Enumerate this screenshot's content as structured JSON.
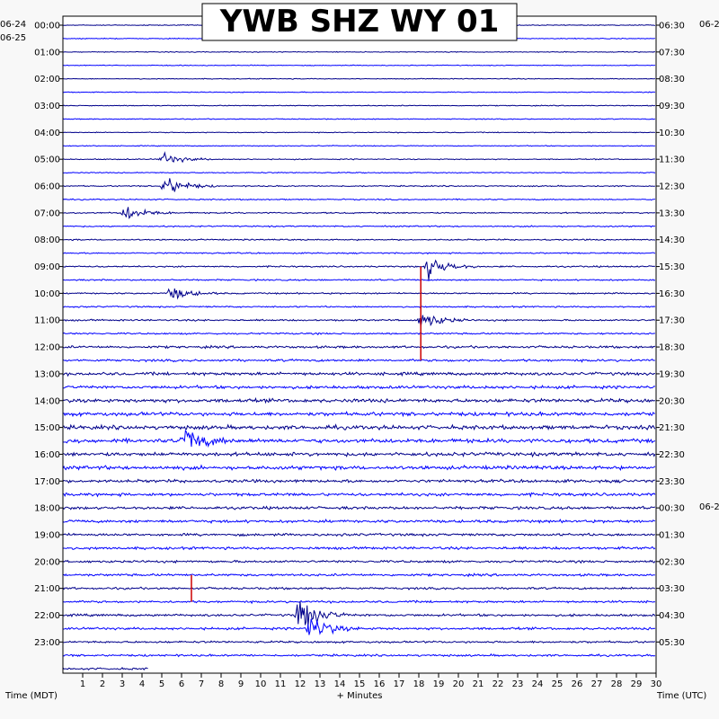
{
  "chart_data": {
    "type": "line",
    "title": "YWB SHZ WY 01",
    "xlabel": "+ Minutes",
    "left_axis_label": "Time (MDT)",
    "right_axis_label": "Time (UTC)",
    "xlim": [
      0,
      30
    ],
    "x_ticks": [
      "1",
      "2",
      "3",
      "4",
      "5",
      "6",
      "7",
      "8",
      "9",
      "10",
      "11",
      "12",
      "13",
      "14",
      "15",
      "16",
      "17",
      "18",
      "19",
      "20",
      "21",
      "22",
      "23",
      "24",
      "25",
      "26",
      "27",
      "28",
      "29",
      "30"
    ],
    "left_date_top": "06-24",
    "left_date_start": "06-25",
    "right_date_top": "06-2",
    "right_date_mid": "06-2",
    "left_hour_labels": [
      "00:00",
      "01:00",
      "02:00",
      "03:00",
      "04:00",
      "05:00",
      "06:00",
      "07:00",
      "08:00",
      "09:00",
      "10:00",
      "11:00",
      "12:00",
      "13:00",
      "14:00",
      "15:00",
      "16:00",
      "17:00",
      "18:00",
      "19:00",
      "20:00",
      "21:00",
      "22:00",
      "23:00"
    ],
    "right_hour_labels": [
      "06:30",
      "07:30",
      "08:30",
      "09:30",
      "10:30",
      "11:30",
      "12:30",
      "13:30",
      "14:30",
      "15:30",
      "16:30",
      "17:30",
      "18:30",
      "19:30",
      "20:30",
      "21:30",
      "22:30",
      "23:30",
      "00:30",
      "01:30",
      "02:30",
      "03:30",
      "04:30",
      "05:30"
    ],
    "trace_colors": [
      "#00008b",
      "#0000ff"
    ],
    "event_color": "#cc0000",
    "series": [
      {
        "hour": "00:00",
        "amplitude_noise": 0.12
      },
      {
        "hour": "01:00",
        "amplitude_noise": 0.12
      },
      {
        "hour": "02:00",
        "amplitude_noise": 0.12
      },
      {
        "hour": "03:00",
        "amplitude_noise": 0.13
      },
      {
        "hour": "04:00",
        "amplitude_noise": 0.13
      },
      {
        "hour": "05:00",
        "amplitude_noise": 0.15
      },
      {
        "hour": "06:00",
        "amplitude_noise": 0.18
      },
      {
        "hour": "07:00",
        "amplitude_noise": 0.2
      },
      {
        "hour": "08:00",
        "amplitude_noise": 0.2
      },
      {
        "hour": "09:00",
        "amplitude_noise": 0.22
      },
      {
        "hour": "10:00",
        "amplitude_noise": 0.22
      },
      {
        "hour": "11:00",
        "amplitude_noise": 0.25
      },
      {
        "hour": "12:00",
        "amplitude_noise": 0.35
      },
      {
        "hour": "13:00",
        "amplitude_noise": 0.45
      },
      {
        "hour": "14:00",
        "amplitude_noise": 0.55
      },
      {
        "hour": "15:00",
        "amplitude_noise": 0.6
      },
      {
        "hour": "16:00",
        "amplitude_noise": 0.55
      },
      {
        "hour": "17:00",
        "amplitude_noise": 0.45
      },
      {
        "hour": "18:00",
        "amplitude_noise": 0.42
      },
      {
        "hour": "19:00",
        "amplitude_noise": 0.38
      },
      {
        "hour": "20:00",
        "amplitude_noise": 0.35
      },
      {
        "hour": "21:00",
        "amplitude_noise": 0.32
      },
      {
        "hour": "22:00",
        "amplitude_noise": 0.35
      },
      {
        "hour": "23:00",
        "amplitude_noise": 0.3
      }
    ],
    "events": [
      {
        "row": 10,
        "minute": 5.1,
        "amplitude": 0.8
      },
      {
        "row": 12,
        "minute": 5.2,
        "amplitude": 1.4
      },
      {
        "row": 14,
        "minute": 3.2,
        "amplitude": 1.0
      },
      {
        "row": 18,
        "minute": 18.5,
        "amplitude": 1.6
      },
      {
        "row": 20,
        "minute": 5.5,
        "amplitude": 0.9
      },
      {
        "row": 22,
        "minute": 18.2,
        "amplitude": 1.2
      },
      {
        "row": 31,
        "minute": 6.2,
        "amplitude": 1.8
      },
      {
        "row": 44,
        "minute": 12.0,
        "amplitude": 2.5
      },
      {
        "row": 45,
        "minute": 12.5,
        "amplitude": 1.8
      }
    ],
    "red_lines": [
      {
        "minute": 18.1,
        "row_start": 18,
        "row_end": 25
      },
      {
        "minute": 6.5,
        "row_start": 41,
        "row_end": 43
      }
    ],
    "final_trace_minutes": 4.3
  }
}
